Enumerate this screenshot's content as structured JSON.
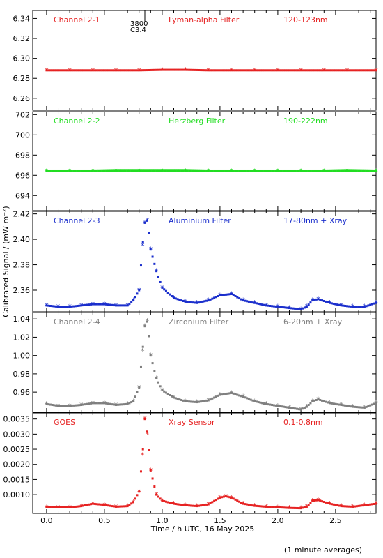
{
  "chart_data": {
    "type": "scatter",
    "xlabel": "Time / h UTC, 16 May 2025",
    "ylabel": "Calibrated Signal / (mW m⁻²)",
    "footnote": "(1 minute averages)",
    "xlim": [
      -0.12,
      2.85
    ],
    "xticks": [
      0.0,
      0.5,
      1.0,
      1.5,
      2.0,
      2.5
    ],
    "xtick_labels": [
      "0.0",
      "0.5",
      "1.0",
      "1.5",
      "2.0",
      "2.5"
    ],
    "annotation": {
      "x": 0.86,
      "y": 6.345,
      "lines": [
        "3800",
        "C3.4"
      ]
    },
    "panels": [
      {
        "id": "ch2-1",
        "channel": "Channel 2-1",
        "filter": "Lyman-alpha Filter",
        "band": "120-123nm",
        "color": "#e62222",
        "ylim": [
          6.248,
          6.348
        ],
        "yticks": [
          6.26,
          6.28,
          6.3,
          6.32,
          6.34
        ],
        "ytick_labels": [
          "6.26",
          "6.28",
          "6.30",
          "6.32",
          "6.34"
        ],
        "series": {
          "x": [
            0.0,
            0.2,
            0.4,
            0.6,
            0.8,
            1.0,
            1.2,
            1.4,
            1.6,
            1.8,
            2.0,
            2.2,
            2.4,
            2.6,
            2.85
          ],
          "y": [
            6.288,
            6.288,
            6.288,
            6.288,
            6.288,
            6.2885,
            6.2885,
            6.288,
            6.288,
            6.288,
            6.288,
            6.288,
            6.288,
            6.288,
            6.288
          ]
        }
      },
      {
        "id": "ch2-2",
        "channel": "Channel 2-2",
        "filter": "Herzberg Filter",
        "band": "190-222nm",
        "color": "#22dd22",
        "ylim": [
          692.5,
          702.3
        ],
        "yticks": [
          694,
          696,
          698,
          700,
          702
        ],
        "ytick_labels": [
          "694",
          "696",
          "698",
          "700",
          "702"
        ],
        "series": {
          "x": [
            0.0,
            0.2,
            0.4,
            0.6,
            0.8,
            1.0,
            1.2,
            1.4,
            1.6,
            1.8,
            2.0,
            2.2,
            2.4,
            2.6,
            2.85
          ],
          "y": [
            696.4,
            696.4,
            696.4,
            696.45,
            696.45,
            696.45,
            696.45,
            696.4,
            696.4,
            696.4,
            696.4,
            696.4,
            696.4,
            696.45,
            696.4
          ]
        }
      },
      {
        "id": "ch2-3",
        "channel": "Channel 2-3",
        "filter": "Aluminium Filter",
        "band": "17-80nm + Xray",
        "color": "#1a2ecc",
        "ylim": [
          2.343,
          2.422
        ],
        "yticks": [
          2.36,
          2.38,
          2.4,
          2.42
        ],
        "ytick_labels": [
          "2.36",
          "2.38",
          "2.40",
          "2.42"
        ],
        "series": {
          "x": [
            0.0,
            0.1,
            0.2,
            0.3,
            0.4,
            0.5,
            0.6,
            0.7,
            0.75,
            0.8,
            0.83,
            0.85,
            0.87,
            0.9,
            0.95,
            1.0,
            1.1,
            1.2,
            1.3,
            1.4,
            1.5,
            1.6,
            1.7,
            1.8,
            1.9,
            2.0,
            2.1,
            2.2,
            2.25,
            2.3,
            2.35,
            2.45,
            2.55,
            2.65,
            2.75,
            2.85
          ],
          "y": [
            2.348,
            2.347,
            2.347,
            2.348,
            2.349,
            2.349,
            2.348,
            2.348,
            2.352,
            2.36,
            2.395,
            2.413,
            2.415,
            2.392,
            2.375,
            2.362,
            2.354,
            2.351,
            2.35,
            2.352,
            2.356,
            2.357,
            2.352,
            2.35,
            2.348,
            2.347,
            2.346,
            2.345,
            2.347,
            2.352,
            2.353,
            2.35,
            2.348,
            2.347,
            2.347,
            2.35
          ]
        }
      },
      {
        "id": "ch2-4",
        "channel": "Channel 2-4",
        "filter": "Zirconium Filter",
        "band": "6-20nm + Xray",
        "color": "#7f7f7f",
        "ylim": [
          0.938,
          1.047
        ],
        "yticks": [
          0.96,
          0.98,
          1.0,
          1.02,
          1.04
        ],
        "ytick_labels": [
          "0.96",
          "0.98",
          "1.00",
          "1.02",
          "1.04"
        ],
        "series": {
          "x": [
            0.0,
            0.1,
            0.2,
            0.3,
            0.4,
            0.5,
            0.6,
            0.7,
            0.75,
            0.8,
            0.83,
            0.85,
            0.87,
            0.9,
            0.95,
            1.0,
            1.1,
            1.2,
            1.3,
            1.4,
            1.5,
            1.6,
            1.7,
            1.8,
            1.9,
            2.0,
            2.1,
            2.2,
            2.25,
            2.3,
            2.35,
            2.45,
            2.55,
            2.65,
            2.75,
            2.85
          ],
          "y": [
            0.947,
            0.945,
            0.945,
            0.946,
            0.948,
            0.948,
            0.946,
            0.947,
            0.95,
            0.965,
            1.005,
            1.032,
            1.038,
            1.0,
            0.975,
            0.962,
            0.954,
            0.95,
            0.949,
            0.951,
            0.957,
            0.959,
            0.955,
            0.95,
            0.947,
            0.945,
            0.943,
            0.941,
            0.944,
            0.95,
            0.952,
            0.948,
            0.946,
            0.944,
            0.943,
            0.948
          ]
        }
      },
      {
        "id": "goes",
        "channel": "GOES",
        "filter": "Xray Sensor",
        "band": "0.1-0.8nm",
        "color": "#e62222",
        "ylim": [
          0.00038,
          0.0037
        ],
        "yticks": [
          0.001,
          0.0015,
          0.002,
          0.0025,
          0.003,
          0.0035
        ],
        "ytick_labels": [
          "0.0010",
          "0.0015",
          "0.0020",
          "0.0025",
          "0.0030",
          "0.0035"
        ],
        "series": {
          "x": [
            0.0,
            0.1,
            0.2,
            0.3,
            0.4,
            0.5,
            0.6,
            0.7,
            0.75,
            0.8,
            0.83,
            0.85,
            0.87,
            0.9,
            0.95,
            1.0,
            1.1,
            1.2,
            1.3,
            1.4,
            1.5,
            1.55,
            1.6,
            1.7,
            1.8,
            1.9,
            2.0,
            2.1,
            2.2,
            2.25,
            2.3,
            2.35,
            2.45,
            2.55,
            2.65,
            2.75,
            2.85
          ],
          "y": [
            0.00058,
            0.00058,
            0.00058,
            0.00062,
            0.0007,
            0.00066,
            0.0006,
            0.00062,
            0.00075,
            0.0011,
            0.0023,
            0.0035,
            0.003,
            0.0018,
            0.001,
            0.0008,
            0.0007,
            0.00065,
            0.00062,
            0.00068,
            0.0009,
            0.00095,
            0.0009,
            0.0007,
            0.00063,
            0.0006,
            0.00058,
            0.00056,
            0.00055,
            0.0006,
            0.0008,
            0.00082,
            0.0007,
            0.00062,
            0.0006,
            0.00065,
            0.0007
          ]
        }
      }
    ]
  }
}
